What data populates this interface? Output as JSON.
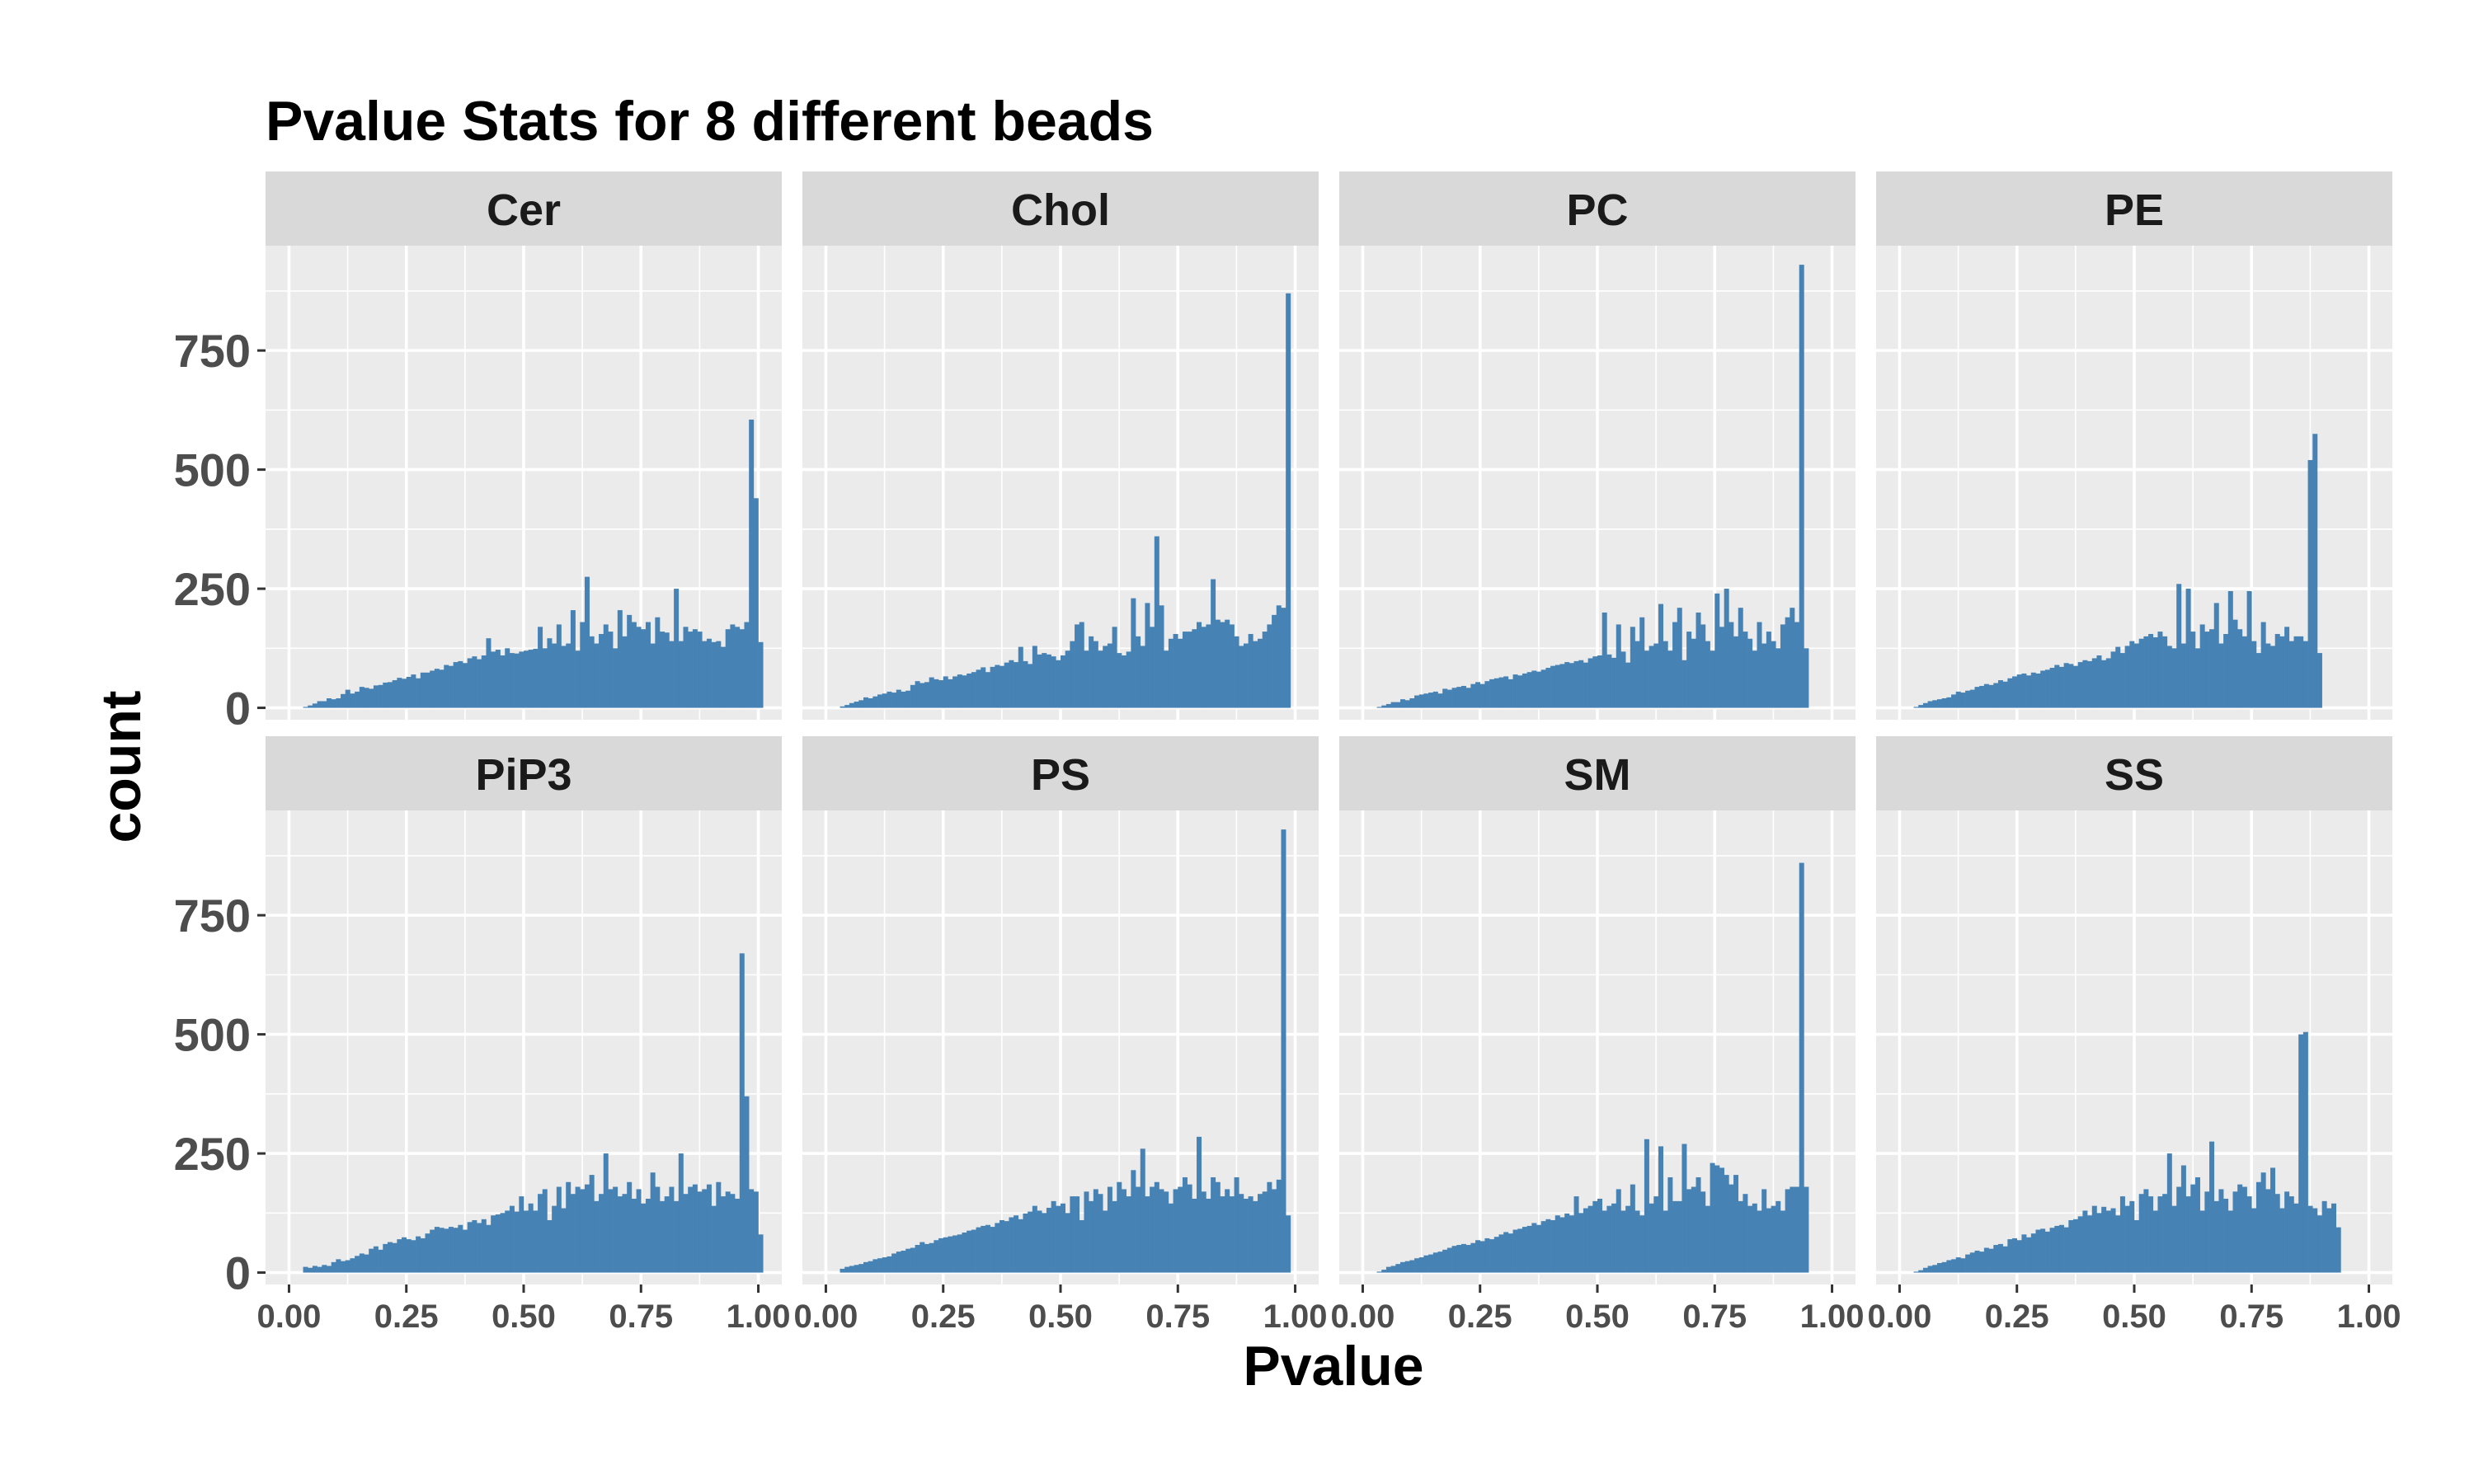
{
  "chart_data": {
    "type": "bar",
    "title": "Pvalue Stats for 8 different beads",
    "xlabel": "Pvalue",
    "ylabel": "count",
    "xlim": [
      -0.05,
      1.05
    ],
    "ylim": [
      -25,
      970
    ],
    "x_ticks": [
      "0.00",
      "0.25",
      "0.50",
      "0.75",
      "1.00"
    ],
    "y_ticks": [
      "0",
      "250",
      "500",
      "750"
    ],
    "bin_width": 0.01,
    "bar_color": "#4682b4",
    "panel_background": "#ebebeb",
    "strip_background": "#d9d9d9",
    "grid": true,
    "facets": [
      {
        "name": "Cer",
        "bins_start": 0.03,
        "values": [
          2,
          5,
          9,
          14,
          14,
          20,
          18,
          20,
          29,
          38,
          30,
          34,
          44,
          42,
          40,
          47,
          48,
          53,
          54,
          58,
          63,
          61,
          65,
          70,
          62,
          74,
          74,
          78,
          82,
          80,
          90,
          88,
          96,
          98,
          94,
          104,
          108,
          102,
          110,
          146,
          118,
          122,
          110,
          125,
          115,
          114,
          118,
          120,
          122,
          124,
          170,
          125,
          146,
          135,
          175,
          130,
          135,
          205,
          120,
          180,
          275,
          150,
          135,
          155,
          175,
          160,
          125,
          205,
          150,
          195,
          180,
          170,
          165,
          180,
          135,
          190,
          160,
          158,
          140,
          250,
          140,
          170,
          160,
          165,
          160,
          140,
          145,
          138,
          140,
          128,
          165,
          175,
          170,
          165,
          180,
          605,
          440,
          138
        ]
      },
      {
        "name": "Chol",
        "bins_start": 0.03,
        "values": [
          3,
          6,
          10,
          13,
          16,
          22,
          20,
          24,
          28,
          30,
          34,
          32,
          38,
          34,
          36,
          48,
          56,
          52,
          54,
          64,
          60,
          58,
          66,
          60,
          66,
          70,
          68,
          72,
          75,
          80,
          85,
          75,
          86,
          90,
          88,
          95,
          100,
          96,
          128,
          98,
          92,
          130,
          112,
          115,
          112,
          108,
          100,
          110,
          120,
          140,
          175,
          180,
          120,
          150,
          140,
          120,
          130,
          135,
          170,
          115,
          110,
          118,
          230,
          150,
          130,
          220,
          170,
          360,
          215,
          120,
          145,
          155,
          145,
          160,
          160,
          165,
          180,
          170,
          175,
          270,
          185,
          180,
          185,
          175,
          150,
          130,
          135,
          155,
          140,
          145,
          160,
          175,
          195,
          215,
          210,
          870
        ]
      },
      {
        "name": "PC",
        "bins_start": 0.03,
        "values": [
          2,
          5,
          8,
          12,
          12,
          18,
          16,
          20,
          26,
          28,
          30,
          32,
          34,
          30,
          40,
          38,
          42,
          44,
          46,
          42,
          50,
          54,
          50,
          56,
          60,
          62,
          64,
          66,
          60,
          70,
          68,
          72,
          75,
          78,
          76,
          80,
          84,
          88,
          90,
          92,
          96,
          94,
          98,
          100,
          95,
          104,
          108,
          110,
          200,
          112,
          105,
          175,
          118,
          95,
          170,
          140,
          190,
          120,
          130,
          135,
          218,
          140,
          120,
          180,
          210,
          100,
          160,
          145,
          200,
          175,
          140,
          120,
          240,
          170,
          250,
          180,
          150,
          210,
          160,
          145,
          120,
          180,
          135,
          160,
          140,
          125,
          175,
          190,
          210,
          180,
          930,
          125
        ]
      },
      {
        "name": "PE",
        "bins_start": 0.03,
        "values": [
          2,
          6,
          10,
          14,
          16,
          18,
          20,
          22,
          28,
          34,
          32,
          36,
          38,
          44,
          46,
          50,
          48,
          52,
          58,
          55,
          62,
          66,
          70,
          72,
          68,
          74,
          72,
          78,
          80,
          84,
          90,
          86,
          94,
          92,
          88,
          96,
          100,
          98,
          104,
          110,
          100,
          104,
          118,
          128,
          115,
          130,
          140,
          135,
          145,
          150,
          155,
          148,
          160,
          150,
          130,
          125,
          260,
          135,
          250,
          160,
          125,
          175,
          160,
          165,
          220,
          135,
          155,
          245,
          185,
          165,
          150,
          245,
          140,
          115,
          180,
          135,
          130,
          155,
          150,
          170,
          140,
          150,
          150,
          140,
          520,
          575,
          115
        ]
      },
      {
        "name": "PiP3",
        "bins_start": 0.03,
        "values": [
          12,
          10,
          14,
          12,
          16,
          14,
          22,
          28,
          24,
          26,
          30,
          35,
          40,
          38,
          50,
          55,
          48,
          60,
          64,
          62,
          70,
          74,
          70,
          68,
          76,
          72,
          82,
          90,
          96,
          94,
          92,
          96,
          94,
          100,
          90,
          106,
          110,
          104,
          112,
          100,
          120,
          122,
          125,
          130,
          140,
          128,
          160,
          130,
          145,
          130,
          165,
          175,
          110,
          140,
          180,
          135,
          190,
          165,
          180,
          175,
          185,
          205,
          150,
          165,
          250,
          175,
          180,
          160,
          165,
          190,
          155,
          175,
          145,
          155,
          210,
          180,
          150,
          160,
          180,
          150,
          250,
          165,
          180,
          185,
          170,
          175,
          185,
          140,
          190,
          160,
          170,
          165,
          155,
          670,
          370,
          175,
          170,
          80
        ]
      },
      {
        "name": "PS",
        "bins_start": 0.03,
        "values": [
          8,
          12,
          14,
          16,
          18,
          22,
          24,
          28,
          30,
          32,
          34,
          40,
          44,
          46,
          50,
          52,
          58,
          64,
          60,
          62,
          68,
          72,
          74,
          76,
          78,
          80,
          84,
          88,
          90,
          95,
          98,
          100,
          96,
          104,
          110,
          108,
          116,
          120,
          112,
          124,
          128,
          140,
          130,
          125,
          136,
          150,
          140,
          145,
          125,
          160,
          160,
          110,
          170,
          150,
          175,
          165,
          130,
          180,
          150,
          190,
          175,
          160,
          215,
          180,
          260,
          160,
          180,
          190,
          175,
          170,
          145,
          175,
          180,
          200,
          185,
          155,
          285,
          170,
          155,
          200,
          190,
          160,
          175,
          160,
          200,
          165,
          155,
          160,
          150,
          165,
          170,
          190,
          175,
          195,
          930,
          120
        ]
      },
      {
        "name": "SM",
        "bins_start": 0.03,
        "values": [
          2,
          6,
          12,
          14,
          18,
          22,
          24,
          26,
          30,
          32,
          36,
          38,
          42,
          44,
          48,
          52,
          56,
          58,
          60,
          58,
          62,
          68,
          66,
          72,
          70,
          75,
          80,
          85,
          82,
          90,
          92,
          96,
          98,
          104,
          100,
          108,
          112,
          110,
          120,
          116,
          124,
          120,
          160,
          125,
          135,
          140,
          150,
          155,
          130,
          140,
          145,
          175,
          130,
          140,
          185,
          130,
          120,
          280,
          145,
          160,
          265,
          130,
          200,
          150,
          150,
          270,
          175,
          180,
          200,
          170,
          140,
          230,
          225,
          220,
          205,
          185,
          205,
          150,
          165,
          140,
          145,
          130,
          175,
          135,
          140,
          150,
          130,
          175,
          180,
          180,
          860,
          180
        ]
      },
      {
        "name": "SS",
        "bins_start": 0.03,
        "values": [
          2,
          5,
          10,
          14,
          16,
          20,
          22,
          26,
          28,
          32,
          30,
          38,
          42,
          46,
          44,
          52,
          50,
          58,
          60,
          55,
          70,
          72,
          68,
          80,
          74,
          82,
          90,
          92,
          86,
          94,
          98,
          100,
          95,
          110,
          112,
          118,
          130,
          120,
          140,
          125,
          138,
          130,
          135,
          120,
          160,
          140,
          150,
          110,
          165,
          175,
          160,
          130,
          160,
          165,
          250,
          140,
          180,
          225,
          160,
          185,
          200,
          130,
          170,
          275,
          150,
          175,
          155,
          130,
          170,
          185,
          180,
          160,
          135,
          190,
          210,
          175,
          220,
          165,
          135,
          170,
          160,
          145,
          500,
          505,
          140,
          135,
          120,
          150,
          135,
          145,
          95
        ]
      }
    ]
  }
}
